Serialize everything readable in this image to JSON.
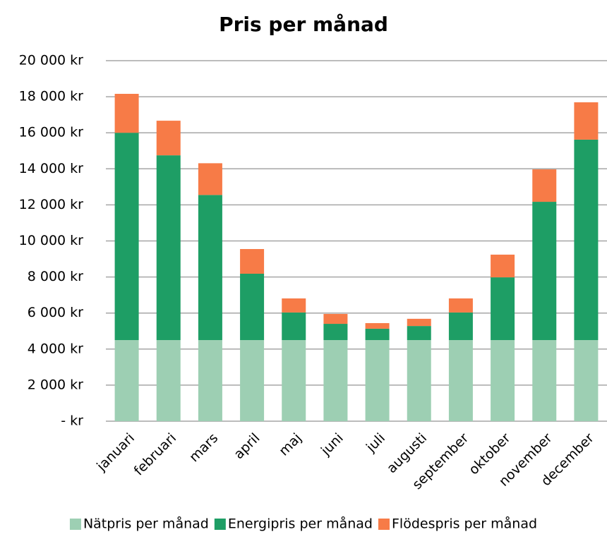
{
  "chart_data": {
    "type": "stacked_bar",
    "title": "Pris per månad",
    "categories": [
      "januari",
      "februari",
      "mars",
      "april",
      "maj",
      "juni",
      "juli",
      "augusti",
      "september",
      "oktober",
      "november",
      "december"
    ],
    "series": [
      {
        "name": "Nätpris per månad",
        "color": "#9dcfb3",
        "values": [
          4500,
          4500,
          4500,
          4500,
          4500,
          4500,
          4500,
          4500,
          4500,
          4500,
          4500,
          4500
        ]
      },
      {
        "name": "Energipris per månad",
        "color": "#1e9e65",
        "values": [
          11500,
          10250,
          8050,
          3680,
          1530,
          900,
          630,
          780,
          1530,
          3480,
          7670,
          11120
        ]
      },
      {
        "name": "Flödespris per månad",
        "color": "#f77b47",
        "values": [
          2160,
          1920,
          1760,
          1370,
          780,
          550,
          310,
          400,
          780,
          1260,
          1800,
          2070
        ]
      }
    ],
    "ylim": [
      0,
      20000
    ],
    "yticks": [
      {
        "value": 0,
        "label": "- kr"
      },
      {
        "value": 2000,
        "label": "2 000 kr"
      },
      {
        "value": 4000,
        "label": "4 000 kr"
      },
      {
        "value": 6000,
        "label": "6 000 kr"
      },
      {
        "value": 8000,
        "label": "8 000 kr"
      },
      {
        "value": 10000,
        "label": "10 000 kr"
      },
      {
        "value": 12000,
        "label": "12 000 kr"
      },
      {
        "value": 14000,
        "label": "14 000 kr"
      },
      {
        "value": 16000,
        "label": "16 000 kr"
      },
      {
        "value": 18000,
        "label": "18 000 kr"
      },
      {
        "value": 20000,
        "label": "20 000 kr"
      }
    ],
    "grid": true,
    "legend": "bottom"
  }
}
